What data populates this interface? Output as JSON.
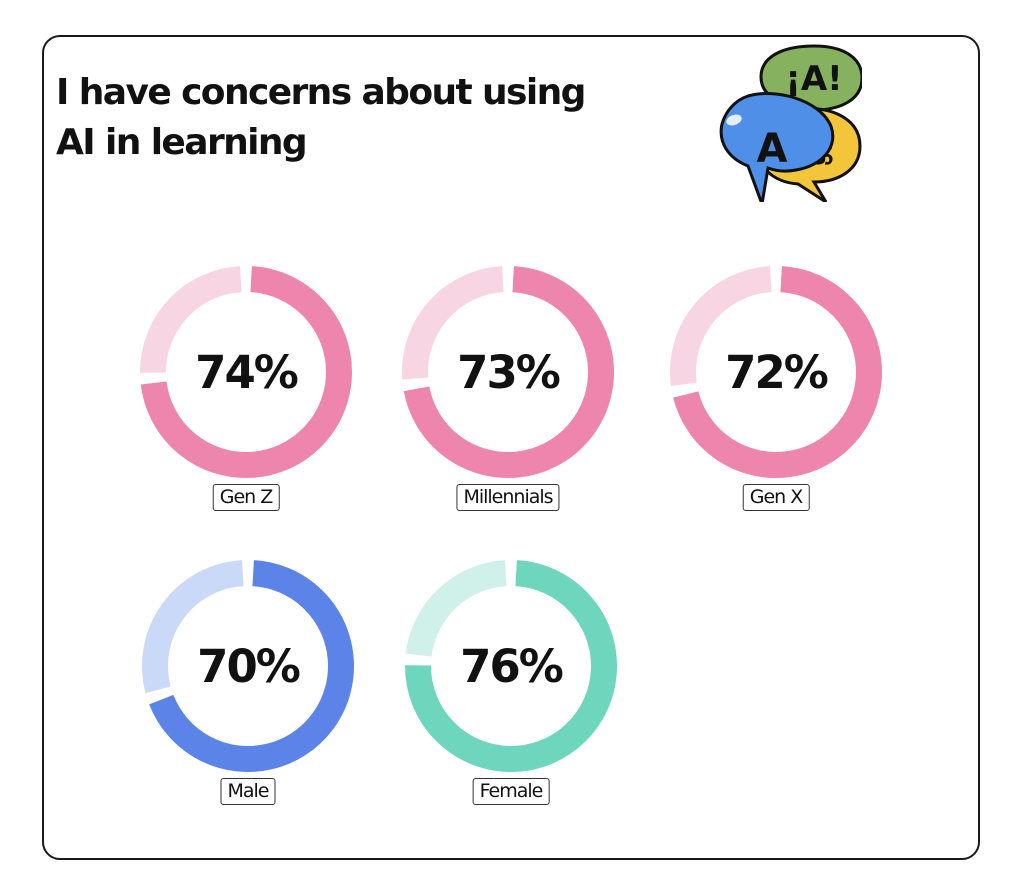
{
  "title_lines": [
    "I have concerns about using",
    "AI in learning"
  ],
  "logo": {
    "name": "speech-bubbles-language-icon",
    "glyphs": {
      "green": "¡A!",
      "blue": "A",
      "yellow": "க"
    },
    "colors": {
      "green": "#86b25f",
      "blue": "#4f8fe8",
      "yellow": "#f3c53a",
      "outline": "#111111"
    }
  },
  "chart_data": [
    {
      "type": "pie",
      "title": "I have concerns about using AI in learning",
      "categories": [
        "Gen Z",
        "Millennials",
        "Gen X"
      ],
      "values": [
        74,
        73,
        72
      ],
      "value_labels": [
        "74%",
        "73%",
        "72%"
      ],
      "unit": "%",
      "style": "donut",
      "colors": {
        "filled": "#ee85ad",
        "remainder": "#f8d5e3"
      }
    },
    {
      "type": "pie",
      "categories": [
        "Male"
      ],
      "values": [
        70
      ],
      "value_labels": [
        "70%"
      ],
      "unit": "%",
      "style": "donut",
      "colors": {
        "filled": "#5b83e8",
        "remainder": "#cbd9f8"
      }
    },
    {
      "type": "pie",
      "categories": [
        "Female"
      ],
      "values": [
        76
      ],
      "value_labels": [
        "76%"
      ],
      "unit": "%",
      "style": "donut",
      "colors": {
        "filled": "#6dd6bd",
        "remainder": "#d0f1e9"
      }
    }
  ]
}
